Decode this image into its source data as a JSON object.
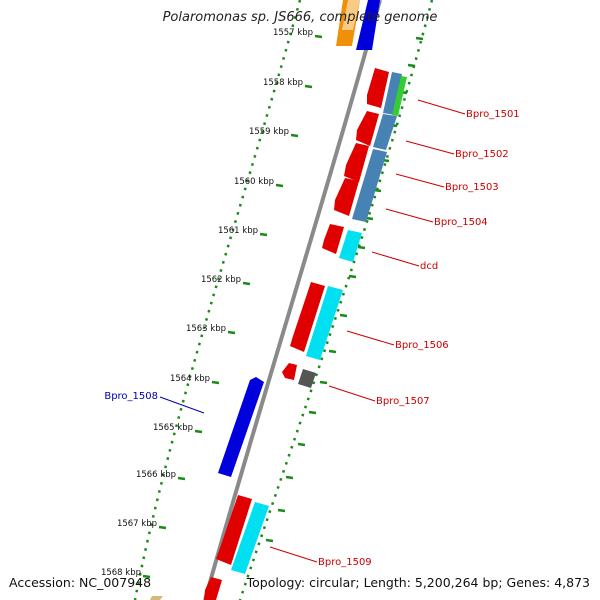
{
  "title": "Polaromonas sp. JS666, complete genome",
  "footer": {
    "accession": "Accession: NC_007948",
    "summary": "Topology: circular; Length: 5,200,264 bp; Genes: 4,873"
  },
  "ticks": [
    {
      "label": "1557 kbp"
    },
    {
      "label": "1558 kbp"
    },
    {
      "label": "1559 kbp"
    },
    {
      "label": "1560 kbp"
    },
    {
      "label": "1561 kbp"
    },
    {
      "label": "1562 kbp"
    },
    {
      "label": "1563 kbp"
    },
    {
      "label": "1564 kbp"
    },
    {
      "label": "1565 kbp"
    },
    {
      "label": "1566 kbp"
    },
    {
      "label": "1567 kbp"
    },
    {
      "label": "1568 kbp"
    }
  ],
  "gene_labels": [
    {
      "text": "Bpro_1501",
      "color": "#cc0000"
    },
    {
      "text": "Bpro_1502",
      "color": "#cc0000"
    },
    {
      "text": "Bpro_1503",
      "color": "#cc0000"
    },
    {
      "text": "Bpro_1504",
      "color": "#cc0000"
    },
    {
      "text": "dcd",
      "color": "#cc0000"
    },
    {
      "text": "Bpro_1506",
      "color": "#cc0000"
    },
    {
      "text": "Bpro_1507",
      "color": "#cc0000"
    },
    {
      "text": "Bpro_1508",
      "color": "#0000aa"
    },
    {
      "text": "Bpro_1509",
      "color": "#cc0000"
    }
  ],
  "colors": {
    "backbone": "#8a8a8a",
    "gc_dots": "#1a8a1a",
    "cds_forward": "#e00000",
    "cds_reverse": "#0000dd",
    "cog_steelblue": "#4682b4",
    "cog_cyan": "#00e0f0",
    "cog_green": "#33cc33",
    "cog_orange": "#f0900a",
    "cog_gray": "#555555"
  }
}
